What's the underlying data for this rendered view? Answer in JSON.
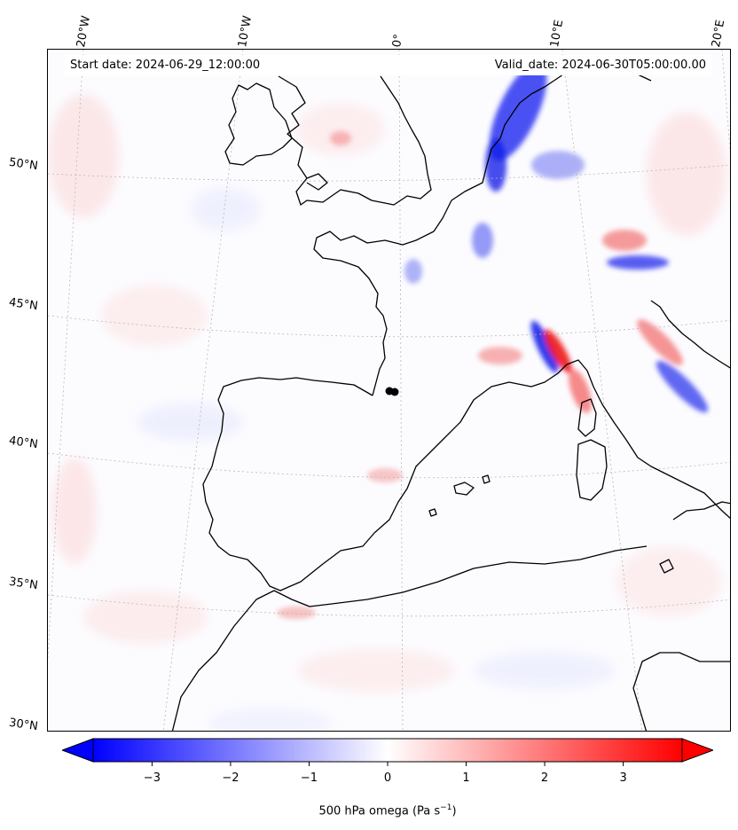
{
  "header": {
    "start_date": "Start date: 2024-06-29_12:00:00",
    "valid_date": "Valid_date: 2024-06-30T05:00:00.00"
  },
  "map": {
    "field": "500 hPa omega",
    "lon_labels": [
      "20°W",
      "10°W",
      "0°",
      "10°E",
      "20°E"
    ],
    "lat_labels": [
      "50°N",
      "45°N",
      "40°N",
      "35°N",
      "30°N"
    ],
    "gridlines": true,
    "coastlines": true,
    "highlight_regions": [
      {
        "region": "Germany / Low Countries",
        "sign": "negative",
        "magnitude": -3.5
      },
      {
        "region": "Alps north of Italy",
        "sign": "negative",
        "magnitude": -3.0
      },
      {
        "region": "Gulf of Genoa",
        "sign": "positive",
        "magnitude": 3.5
      },
      {
        "region": "Ligurian Sea",
        "sign": "negative",
        "magnitude": -3.2
      },
      {
        "region": "Adriatic",
        "sign": "mixed",
        "magnitude": 2.0
      }
    ]
  },
  "colorbar": {
    "colormap": "bwr",
    "min": -3.75,
    "max": 3.75,
    "extend": "both",
    "ticks": [
      "−3",
      "−2",
      "−1",
      "0",
      "1",
      "2",
      "3"
    ],
    "tick_values": [
      -3,
      -2,
      -1,
      0,
      1,
      2,
      3
    ],
    "label_main": "500 hPa omega (Pa s",
    "label_sup": "−1",
    "label_end": ")",
    "colors": {
      "low": "#0000ff",
      "mid": "#ffffff",
      "high": "#ff0000"
    }
  }
}
